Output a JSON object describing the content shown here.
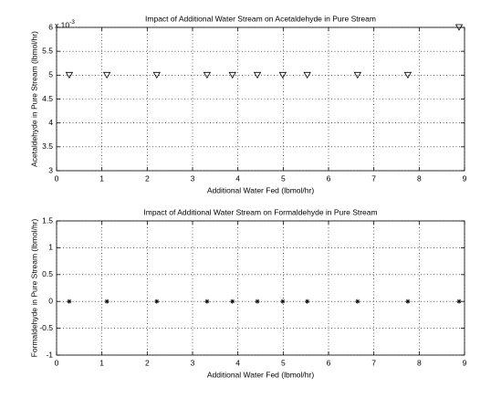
{
  "chart_data": [
    {
      "type": "scatter",
      "title": "Impact of Additional Water Stream on Acetaldehyde in Pure Stream",
      "x_label": "Additional Water Fed (lbmol/hr)",
      "y_label": "Acetaldehyde in Pure Stream (lbmol/hr)",
      "y_multiplier": "x 10",
      "y_multiplier_exponent": "-3",
      "marker": "triangle-down",
      "color": "#000000",
      "grid": true,
      "x": [
        0.28,
        1.11,
        2.21,
        3.32,
        3.88,
        4.43,
        4.99,
        5.53,
        6.64,
        7.75,
        8.88
      ],
      "values": [
        5,
        5,
        5,
        5,
        5,
        5,
        5,
        5,
        5,
        5,
        6
      ],
      "xlim": [
        0,
        9
      ],
      "xticks": [
        0,
        1,
        2,
        3,
        4,
        5,
        6,
        7,
        8,
        9
      ],
      "ylim": [
        3,
        6
      ],
      "yticks": [
        3,
        3.5,
        4,
        4.5,
        5,
        5.5,
        6
      ]
    },
    {
      "type": "scatter",
      "title": "Impact of Additional Water Stream on Formaldehyde in Pure Stream",
      "x_label": "Additional Water Fed (lbmol/hr)",
      "y_label": "Formaldehyde in Pure Stream (lbmol/hr)",
      "marker": "star",
      "color": "#000000",
      "grid": true,
      "x": [
        0.28,
        1.11,
        2.21,
        3.32,
        3.88,
        4.43,
        4.99,
        5.53,
        6.64,
        7.75,
        8.88
      ],
      "values": [
        0,
        0,
        0,
        0,
        0,
        0,
        0,
        0,
        0,
        0,
        0
      ],
      "xlim": [
        0,
        9
      ],
      "xticks": [
        0,
        1,
        2,
        3,
        4,
        5,
        6,
        7,
        8,
        9
      ],
      "ylim": [
        -1,
        1.5
      ],
      "yticks": [
        -1,
        -0.5,
        0,
        0.5,
        1,
        1.5
      ]
    }
  ]
}
